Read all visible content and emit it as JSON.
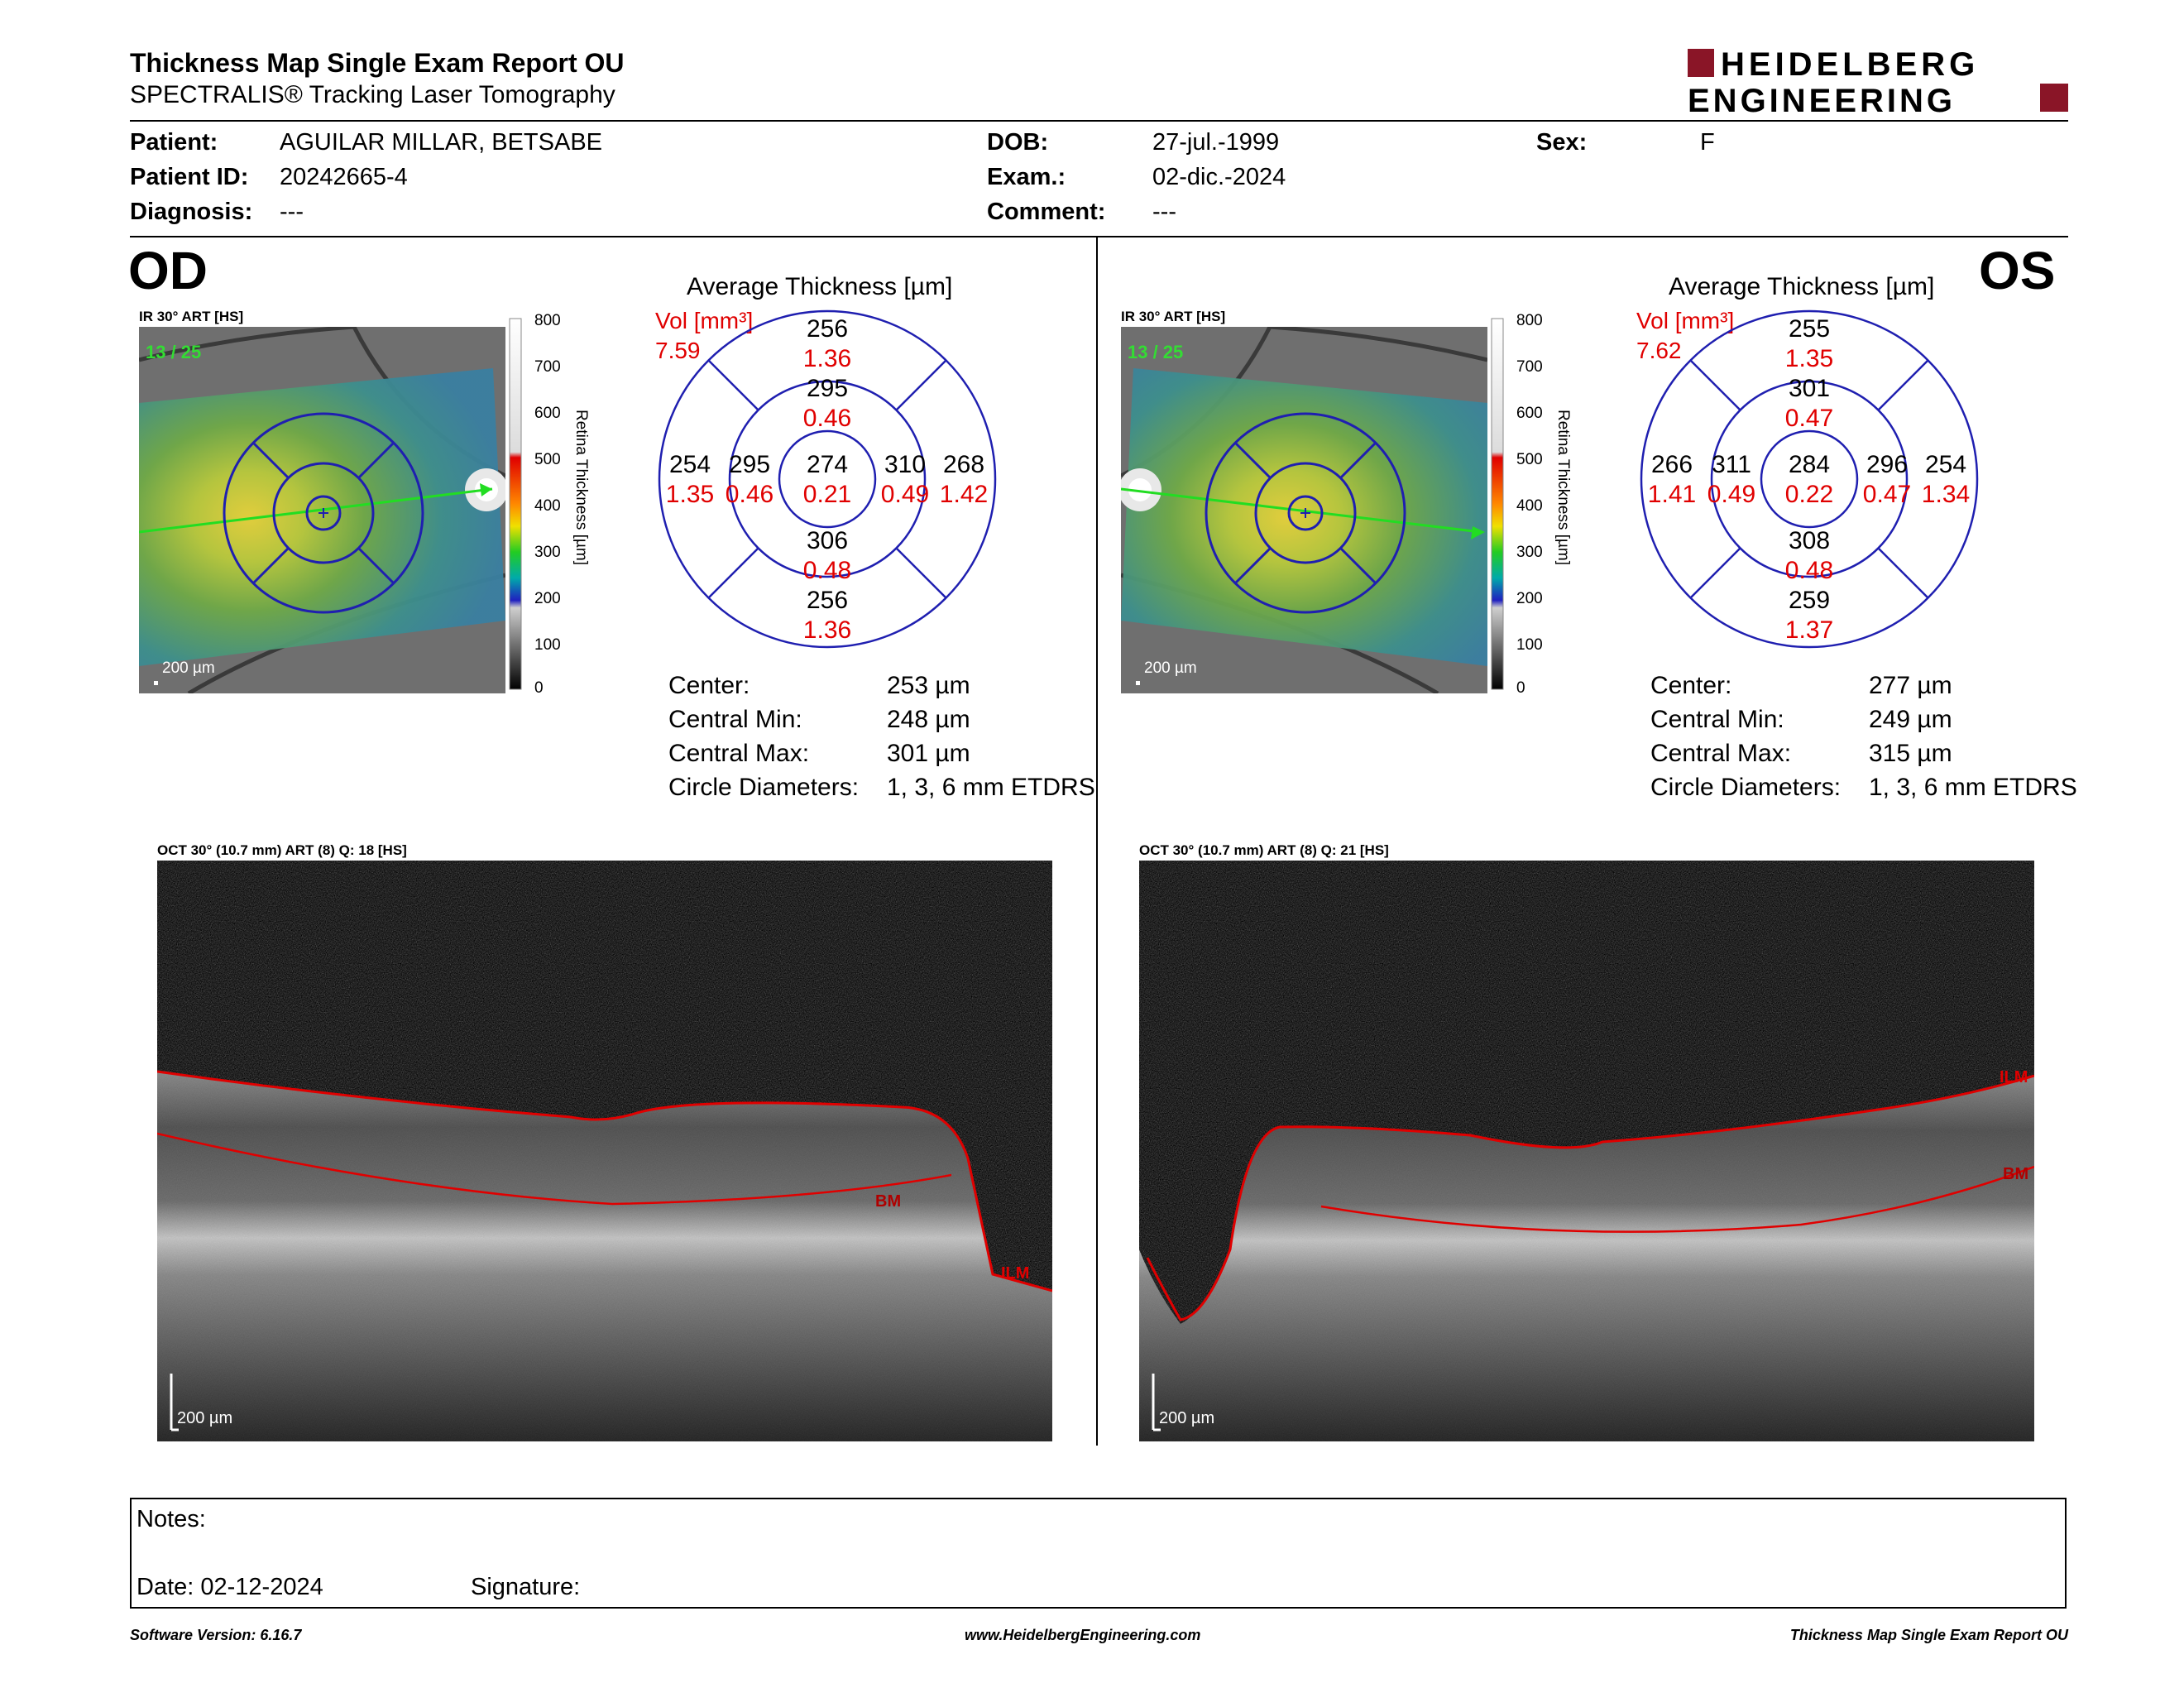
{
  "header": {
    "title": "Thickness Map Single Exam Report OU",
    "subtitle": "SPECTRALIS® Tracking Laser Tomography",
    "logo_line1": "HEIDELBERG",
    "logo_line2": "ENGINEERING",
    "brand_color": "#8a1527"
  },
  "patient": {
    "patient_label": "Patient:",
    "patient_value": "AGUILAR MILLAR, BETSABE",
    "id_label": "Patient ID:",
    "id_value": "20242665-4",
    "diagnosis_label": "Diagnosis:",
    "diagnosis_value": "---",
    "dob_label": "DOB:",
    "dob_value": "27-jul.-1999",
    "exam_label": "Exam.:",
    "exam_value": "02-dic.-2024",
    "comment_label": "Comment:",
    "comment_value": "---",
    "sex_label": "Sex:",
    "sex_value": "F"
  },
  "od": {
    "eye": "OD",
    "ir_label": "IR 30° ART [HS]",
    "frames": "13 / 25",
    "scale": "200 µm",
    "colorbar_title": "Retina Thickness [µm]",
    "colorbar_ticks": [
      "800",
      "700",
      "600",
      "500",
      "400",
      "300",
      "200",
      "100",
      "0"
    ],
    "avg_title": "Average Thickness [µm]",
    "vol_label": "Vol [mm³]",
    "vol_value": "7.59",
    "etdrs": {
      "center": {
        "t": "274",
        "v": "0.21"
      },
      "inner_sup": {
        "t": "295",
        "v": "0.46"
      },
      "inner_inf": {
        "t": "306",
        "v": "0.48"
      },
      "inner_left": {
        "t": "295",
        "v": "0.46"
      },
      "inner_right": {
        "t": "310",
        "v": "0.49"
      },
      "outer_sup": {
        "t": "256",
        "v": "1.36"
      },
      "outer_inf": {
        "t": "256",
        "v": "1.36"
      },
      "outer_left": {
        "t": "254",
        "v": "1.35"
      },
      "outer_right": {
        "t": "268",
        "v": "1.42"
      }
    },
    "stats": [
      {
        "label": "Center:",
        "value": "253 µm"
      },
      {
        "label": "Central Min:",
        "value": "248 µm"
      },
      {
        "label": "Central Max:",
        "value": "301 µm"
      },
      {
        "label": "Circle Diameters:",
        "value": "1, 3, 6 mm ETDRS"
      }
    ],
    "oct_label": "OCT 30° (10.7 mm) ART (8) Q: 18 [HS]",
    "oct_scale": "200 µm",
    "ilm": "ILM",
    "bm": "BM"
  },
  "os": {
    "eye": "OS",
    "ir_label": "IR 30° ART [HS]",
    "frames": "13 / 25",
    "scale": "200 µm",
    "colorbar_title": "Retina Thickness [µm]",
    "colorbar_ticks": [
      "800",
      "700",
      "600",
      "500",
      "400",
      "300",
      "200",
      "100",
      "0"
    ],
    "avg_title": "Average Thickness [µm]",
    "vol_label": "Vol [mm³]",
    "vol_value": "7.62",
    "etdrs": {
      "center": {
        "t": "284",
        "v": "0.22"
      },
      "inner_sup": {
        "t": "301",
        "v": "0.47"
      },
      "inner_inf": {
        "t": "308",
        "v": "0.48"
      },
      "inner_left": {
        "t": "311",
        "v": "0.49"
      },
      "inner_right": {
        "t": "296",
        "v": "0.47"
      },
      "outer_sup": {
        "t": "255",
        "v": "1.35"
      },
      "outer_inf": {
        "t": "259",
        "v": "1.37"
      },
      "outer_left": {
        "t": "266",
        "v": "1.41"
      },
      "outer_right": {
        "t": "254",
        "v": "1.34"
      }
    },
    "stats": [
      {
        "label": "Center:",
        "value": "277 µm"
      },
      {
        "label": "Central Min:",
        "value": "249 µm"
      },
      {
        "label": "Central Max:",
        "value": "315 µm"
      },
      {
        "label": "Circle Diameters:",
        "value": "1, 3, 6 mm ETDRS"
      }
    ],
    "oct_label": "OCT 30° (10.7 mm) ART (8) Q: 21 [HS]",
    "oct_scale": "200 µm",
    "ilm": "ILM",
    "bm": "BM"
  },
  "notes": {
    "notes_label": "Notes:",
    "date_label": "Date: 02-12-2024",
    "signature_label": "Signature:"
  },
  "footer": {
    "left": "Software Version: 6.16.7",
    "center": "www.HeidelbergEngineering.com",
    "right": "Thickness Map Single Exam Report OU"
  },
  "colors": {
    "thickness_value": "#000000",
    "volume_value": "#e00000",
    "grid_blue": "#1f1fb0",
    "scan_arrow": "#22dd22",
    "segmentation": "#e00000"
  }
}
